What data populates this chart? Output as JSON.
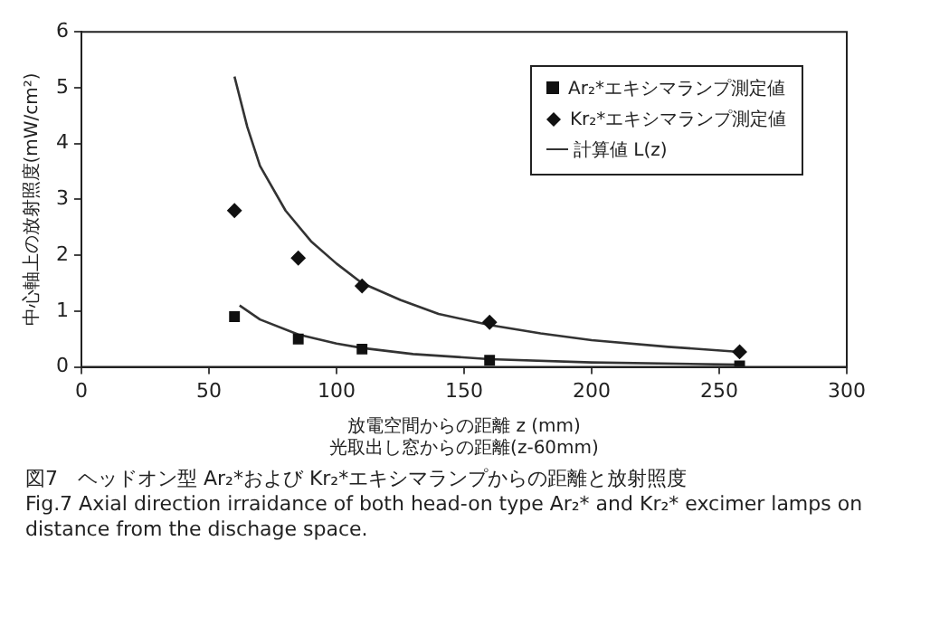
{
  "chart_data": {
    "type": "scatter",
    "xlabel": "放電空間からの距離 z (mm)\n光取出し窓からの距離(z-60mm)",
    "ylabel": "中心軸上の放射照度(mW/cm²)",
    "xlim": [
      0,
      300
    ],
    "xticks": [
      0,
      50,
      100,
      150,
      200,
      250,
      300
    ],
    "ylim": [
      0,
      6
    ],
    "yticks": [
      0,
      1,
      2,
      3,
      4,
      5,
      6
    ],
    "grid": false,
    "legend": "top right",
    "series": [
      {
        "name": "Ar₂*エキシマランプ測定値",
        "type": "scatter",
        "marker": "square",
        "color": "#111111",
        "x": [
          60,
          85,
          110,
          160,
          258
        ],
        "values": [
          0.9,
          0.5,
          0.32,
          0.12,
          0.02
        ]
      },
      {
        "name": "Kr₂*エキシマランプ測定値",
        "type": "scatter",
        "marker": "diamond",
        "color": "#111111",
        "x": [
          60,
          85,
          110,
          160,
          258
        ],
        "values": [
          2.8,
          1.95,
          1.45,
          0.8,
          0.27
        ]
      },
      {
        "name": "計算値 L(z)",
        "type": "line",
        "marker": "none",
        "color": "#333333",
        "x": [
          60,
          65,
          70,
          80,
          90,
          100,
          110,
          125,
          140,
          160,
          180,
          200,
          230,
          258
        ],
        "values": [
          5.2,
          4.3,
          3.6,
          2.8,
          2.25,
          1.85,
          1.5,
          1.2,
          0.95,
          0.75,
          0.6,
          0.48,
          0.36,
          0.27
        ]
      },
      {
        "type": "line",
        "marker": "none",
        "color": "#333333",
        "x": [
          62,
          70,
          85,
          100,
          110,
          130,
          160,
          200,
          258
        ],
        "values": [
          1.1,
          0.85,
          0.58,
          0.42,
          0.34,
          0.23,
          0.14,
          0.08,
          0.04
        ]
      }
    ],
    "annotations": [
      "図7　ヘッドオン型 Ar₂*および Kr₂*エキシマランプからの距離と放射照度",
      "Fig.7 Axial direction irraidance of both head-on type Ar₂* and Kr₂* excimer lamps on distance from the dischage space."
    ]
  }
}
